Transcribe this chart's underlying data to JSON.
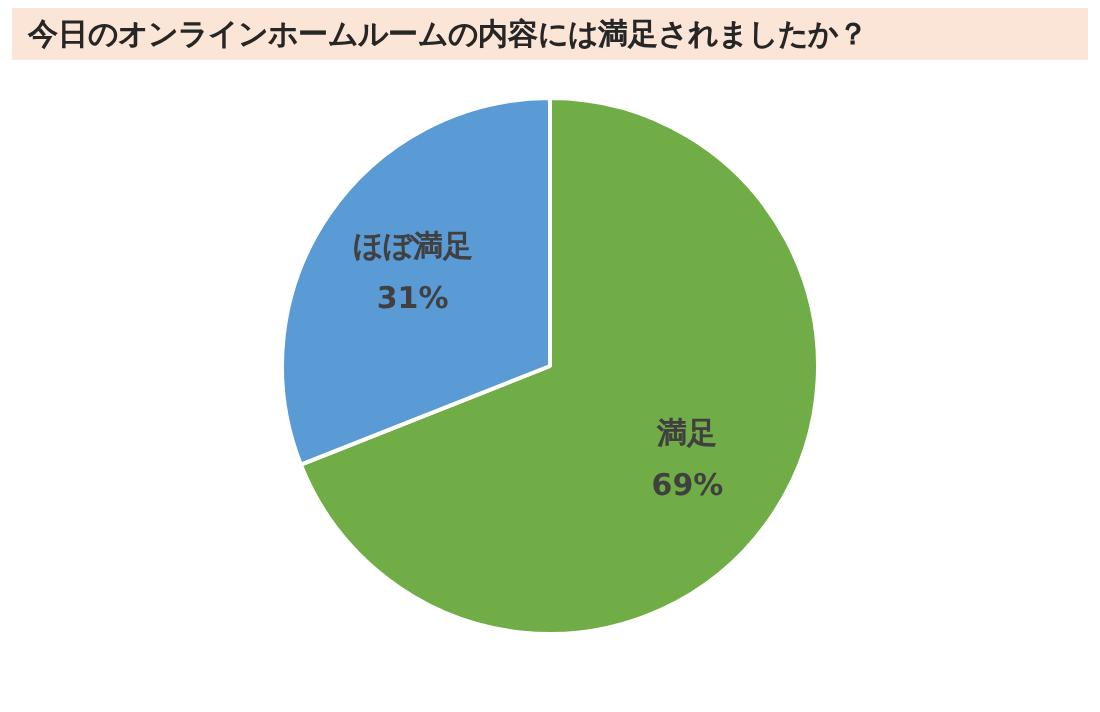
{
  "chart_data": {
    "type": "pie",
    "title": "今日のオンラインホームルームの内容には満足されましたか？",
    "categories": [
      "満足",
      "ほぼ満足"
    ],
    "values": [
      69,
      31
    ],
    "colors": [
      "#70ad47",
      "#5b9bd5"
    ],
    "value_labels": [
      "69%",
      "31%"
    ],
    "legend": false
  }
}
